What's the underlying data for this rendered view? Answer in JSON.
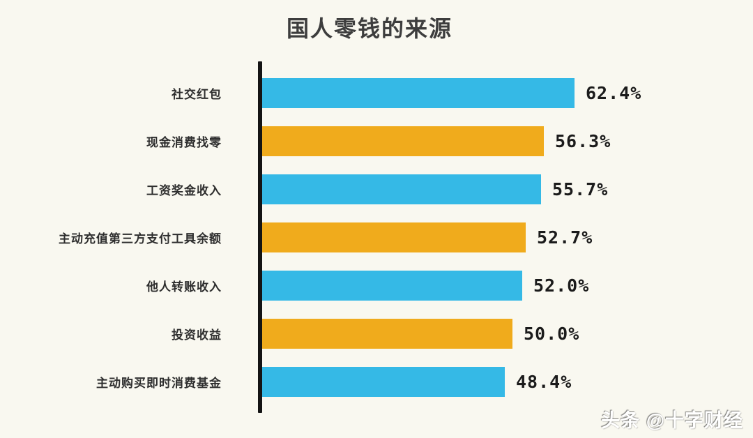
{
  "title": "国人零钱的来源",
  "watermark": "头条 @十字财经",
  "chart_data": {
    "type": "bar",
    "orientation": "horizontal",
    "title": "国人零钱的来源",
    "categories": [
      "社交红包",
      "现金消费找零",
      "工资奖金收入",
      "主动充值第三方支付工具余额",
      "他人转账收入",
      "投资收益",
      "主动购买即时消费基金"
    ],
    "values": [
      62.4,
      56.3,
      55.7,
      52.7,
      52.0,
      50.0,
      48.4
    ],
    "value_labels": [
      "62.4%",
      "56.3%",
      "55.7%",
      "52.7%",
      "52.0%",
      "50.0%",
      "48.4%"
    ],
    "bar_color_sequence": [
      "blue",
      "orange",
      "blue",
      "orange",
      "blue",
      "orange",
      "blue"
    ],
    "colors": {
      "blue": "#35B9E6",
      "orange": "#F0AB1C",
      "axis": "#141414",
      "background": "#F9F8F0",
      "text": "#2e2e2e"
    },
    "xlim": [
      0,
      65
    ],
    "xlabel": "",
    "ylabel": "",
    "grid": false,
    "legend": false
  }
}
